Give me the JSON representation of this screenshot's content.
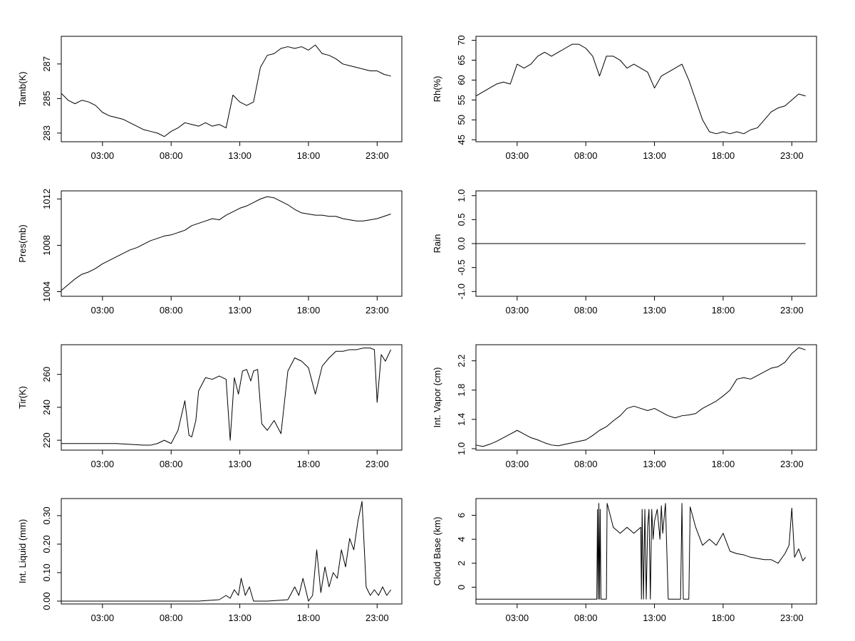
{
  "chart_data": [
    {
      "type": "line",
      "ylabel": "Tamb(K)",
      "x_ticks": [
        "03:00",
        "08:00",
        "13:00",
        "18:00",
        "23:00"
      ],
      "xlim": [
        0,
        24.8
      ],
      "ylim": [
        282.5,
        288.6
      ],
      "y_ticks": [
        "283",
        "285",
        "287"
      ],
      "line_color": "#000000",
      "x": [
        0,
        0.5,
        1,
        1.5,
        2,
        2.5,
        3,
        3.5,
        4,
        4.5,
        5,
        5.5,
        6,
        6.5,
        7,
        7.5,
        8,
        8.5,
        9,
        9.5,
        10,
        10.5,
        11,
        11.5,
        12,
        12.5,
        13,
        13.5,
        14,
        14.5,
        15,
        15.5,
        16,
        16.5,
        17,
        17.5,
        18,
        18.5,
        19,
        19.5,
        20,
        20.5,
        21,
        21.5,
        22,
        22.5,
        23,
        23.5,
        24
      ],
      "values": [
        285.3,
        284.9,
        284.7,
        284.9,
        284.8,
        284.6,
        284.2,
        284.0,
        283.9,
        283.8,
        283.6,
        283.4,
        283.2,
        283.1,
        283.0,
        282.8,
        283.1,
        283.3,
        283.6,
        283.5,
        283.4,
        283.6,
        283.4,
        283.5,
        283.3,
        285.2,
        284.8,
        284.6,
        284.8,
        286.8,
        287.5,
        287.6,
        287.9,
        288.0,
        287.9,
        288.0,
        287.8,
        288.1,
        287.6,
        287.5,
        287.3,
        287.0,
        286.9,
        286.8,
        286.7,
        286.6,
        286.6,
        286.4,
        286.3
      ]
    },
    {
      "type": "line",
      "ylabel": "Rh(%)",
      "x_ticks": [
        "03:00",
        "08:00",
        "13:00",
        "18:00",
        "23:00"
      ],
      "xlim": [
        0,
        24.8
      ],
      "ylim": [
        44.5,
        71
      ],
      "y_ticks": [
        "45",
        "50",
        "55",
        "60",
        "65",
        "70"
      ],
      "line_color": "#000000",
      "x": [
        0,
        0.5,
        1,
        1.5,
        2,
        2.5,
        3,
        3.5,
        4,
        4.5,
        5,
        5.5,
        6,
        6.5,
        7,
        7.5,
        8,
        8.5,
        9,
        9.5,
        10,
        10.5,
        11,
        11.5,
        12,
        12.5,
        13,
        13.5,
        14,
        14.5,
        15,
        15.5,
        16,
        16.5,
        17,
        17.5,
        18,
        18.5,
        19,
        19.5,
        20,
        20.5,
        21,
        21.5,
        22,
        22.5,
        23,
        23.5,
        24
      ],
      "values": [
        56,
        57,
        58,
        59,
        59.5,
        59,
        64,
        63,
        64,
        66,
        67,
        66,
        67,
        68,
        69,
        69,
        68,
        66,
        61,
        66,
        66,
        65,
        63,
        64,
        63,
        62,
        58,
        61,
        62,
        63,
        64,
        60,
        55,
        50,
        47,
        46.5,
        47,
        46.5,
        47,
        46.5,
        47.5,
        48,
        50,
        52,
        53,
        53.5,
        55,
        56.5,
        56
      ]
    },
    {
      "type": "line",
      "ylabel": "Pres(mb)",
      "x_ticks": [
        "03:00",
        "08:00",
        "13:00",
        "18:00",
        "23:00"
      ],
      "xlim": [
        0,
        24.8
      ],
      "ylim": [
        1003.6,
        1012.7
      ],
      "y_ticks": [
        "1004",
        "1008",
        "1012"
      ],
      "line_color": "#000000",
      "x": [
        0,
        0.5,
        1,
        1.5,
        2,
        2.5,
        3,
        3.5,
        4,
        4.5,
        5,
        5.5,
        6,
        6.5,
        7,
        7.5,
        8,
        8.5,
        9,
        9.5,
        10,
        10.5,
        11,
        11.5,
        12,
        12.5,
        13,
        13.5,
        14,
        14.5,
        15,
        15.5,
        16,
        16.5,
        17,
        17.5,
        18,
        18.5,
        19,
        19.5,
        20,
        20.5,
        21,
        21.5,
        22,
        22.5,
        23,
        23.5,
        24
      ],
      "values": [
        1004.1,
        1004.6,
        1005.1,
        1005.5,
        1005.7,
        1006.0,
        1006.4,
        1006.7,
        1007.0,
        1007.3,
        1007.6,
        1007.8,
        1008.1,
        1008.4,
        1008.6,
        1008.8,
        1008.9,
        1009.1,
        1009.3,
        1009.7,
        1009.9,
        1010.1,
        1010.3,
        1010.2,
        1010.6,
        1010.9,
        1011.2,
        1011.4,
        1011.7,
        1012.0,
        1012.2,
        1012.1,
        1011.8,
        1011.5,
        1011.1,
        1010.8,
        1010.7,
        1010.6,
        1010.6,
        1010.5,
        1010.5,
        1010.3,
        1010.2,
        1010.1,
        1010.1,
        1010.2,
        1010.3,
        1010.5,
        1010.7
      ]
    },
    {
      "type": "line",
      "ylabel": "Rain",
      "x_ticks": [
        "03:00",
        "08:00",
        "13:00",
        "18:00",
        "23:00"
      ],
      "xlim": [
        0,
        24.8
      ],
      "ylim": [
        -1.1,
        1.1
      ],
      "y_ticks": [
        "-1.0",
        "-0.5",
        "0.0",
        "0.5",
        "1.0"
      ],
      "line_color": "#000000",
      "x": [
        0,
        24
      ],
      "values": [
        0,
        0
      ]
    },
    {
      "type": "line",
      "ylabel": "Tir(K)",
      "x_ticks": [
        "03:00",
        "08:00",
        "13:00",
        "18:00",
        "23:00"
      ],
      "xlim": [
        0,
        24.8
      ],
      "ylim": [
        214,
        278
      ],
      "y_ticks": [
        "220",
        "240",
        "260"
      ],
      "line_color": "#000000",
      "x": [
        0,
        1,
        2,
        3,
        4,
        5,
        6,
        6.5,
        7,
        7.5,
        8,
        8.5,
        9,
        9.3,
        9.5,
        9.8,
        10,
        10.5,
        11,
        11.5,
        12,
        12.3,
        12.6,
        12.9,
        13.2,
        13.5,
        13.8,
        14,
        14.3,
        14.6,
        15,
        15.5,
        16,
        16.5,
        17,
        17.5,
        18,
        18.5,
        19,
        19.5,
        20,
        20.5,
        21,
        21.5,
        22,
        22.5,
        22.8,
        23,
        23.3,
        23.6,
        24
      ],
      "values": [
        218,
        218,
        218,
        218,
        218,
        217.5,
        217,
        217,
        218,
        220,
        218,
        226,
        244,
        223,
        222,
        232,
        250,
        258,
        257,
        259,
        257,
        220,
        258,
        248,
        262,
        263,
        256,
        262,
        263,
        230,
        226,
        232,
        224,
        262,
        270,
        268,
        264,
        248,
        265,
        270,
        274,
        274,
        275,
        275,
        276,
        276,
        275,
        243,
        272,
        268,
        275
      ]
    },
    {
      "type": "line",
      "ylabel": "Int. Vapor (cm)",
      "x_ticks": [
        "03:00",
        "08:00",
        "13:00",
        "18:00",
        "23:00"
      ],
      "xlim": [
        0,
        24.8
      ],
      "ylim": [
        0.98,
        2.42
      ],
      "y_ticks": [
        "1.0",
        "1.4",
        "1.8",
        "2.2"
      ],
      "line_color": "#000000",
      "x": [
        0,
        0.5,
        1,
        1.5,
        2,
        2.5,
        3,
        3.5,
        4,
        4.5,
        5,
        5.5,
        6,
        6.5,
        7,
        7.5,
        8,
        8.5,
        9,
        9.5,
        10,
        10.5,
        11,
        11.5,
        12,
        12.5,
        13,
        13.5,
        14,
        14.5,
        15,
        15.5,
        16,
        16.5,
        17,
        17.5,
        18,
        18.5,
        19,
        19.5,
        20,
        20.5,
        21,
        21.5,
        22,
        22.5,
        23,
        23.5,
        24
      ],
      "values": [
        1.05,
        1.03,
        1.06,
        1.1,
        1.15,
        1.2,
        1.25,
        1.2,
        1.15,
        1.12,
        1.08,
        1.05,
        1.04,
        1.06,
        1.08,
        1.1,
        1.12,
        1.18,
        1.25,
        1.3,
        1.38,
        1.45,
        1.55,
        1.58,
        1.55,
        1.52,
        1.55,
        1.5,
        1.45,
        1.42,
        1.45,
        1.46,
        1.48,
        1.55,
        1.6,
        1.65,
        1.72,
        1.8,
        1.95,
        1.97,
        1.95,
        2.0,
        2.05,
        2.1,
        2.12,
        2.18,
        2.3,
        2.38,
        2.35
      ]
    },
    {
      "type": "line",
      "ylabel": "Int. Liquid (mm)",
      "x_ticks": [
        "03:00",
        "08:00",
        "13:00",
        "18:00",
        "23:00"
      ],
      "xlim": [
        0,
        24.8
      ],
      "ylim": [
        -0.01,
        0.36
      ],
      "y_ticks": [
        "0.00",
        "0.10",
        "0.20",
        "0.30"
      ],
      "line_color": "#000000",
      "x": [
        0,
        5,
        10,
        11.5,
        12,
        12.3,
        12.6,
        12.9,
        13.1,
        13.4,
        13.7,
        14,
        15,
        16.5,
        17,
        17.3,
        17.6,
        18,
        18.3,
        18.6,
        18.9,
        19.2,
        19.5,
        19.8,
        20.1,
        20.4,
        20.7,
        21,
        21.3,
        21.6,
        21.9,
        22.2,
        22.5,
        22.8,
        23.1,
        23.4,
        23.7,
        24
      ],
      "values": [
        0,
        0,
        0,
        0.005,
        0.02,
        0.01,
        0.04,
        0.02,
        0.08,
        0.02,
        0.05,
        0,
        0,
        0.005,
        0.05,
        0.02,
        0.08,
        0,
        0.02,
        0.18,
        0.03,
        0.12,
        0.05,
        0.1,
        0.08,
        0.18,
        0.12,
        0.22,
        0.18,
        0.28,
        0.35,
        0.05,
        0.02,
        0.04,
        0.02,
        0.05,
        0.02,
        0.04
      ]
    },
    {
      "type": "line",
      "ylabel": "Cloud Base (km)",
      "x_ticks": [
        "03:00",
        "08:00",
        "13:00",
        "18:00",
        "23:00"
      ],
      "xlim": [
        0,
        24.8
      ],
      "ylim": [
        -1.4,
        7.4
      ],
      "y_ticks": [
        "0",
        "2",
        "4",
        "6"
      ],
      "line_color": "#000000",
      "x": [
        0,
        8.8,
        8.85,
        8.9,
        8.95,
        9,
        9.05,
        9.1,
        9.5,
        9.55,
        9.6,
        10,
        10.5,
        11,
        11.5,
        12,
        12.05,
        12.1,
        12.2,
        12.3,
        12.4,
        12.5,
        12.6,
        12.7,
        12.8,
        12.9,
        13,
        13.2,
        13.4,
        13.5,
        13.6,
        13.8,
        14,
        14.1,
        14.5,
        14.9,
        15,
        15.1,
        15.5,
        15.6,
        16,
        16.5,
        17,
        17.5,
        18,
        18.5,
        19,
        19.5,
        20,
        20.5,
        21,
        21.5,
        22,
        22.5,
        22.8,
        23,
        23.2,
        23.5,
        23.8,
        24
      ],
      "values": [
        -1,
        -1,
        6.5,
        -1,
        7,
        -1,
        6.5,
        -1,
        -1,
        7,
        6.8,
        5,
        4.5,
        5,
        4.5,
        5,
        -1,
        6.5,
        -1,
        6.5,
        -1,
        5,
        6.5,
        -1,
        6.5,
        4,
        5.5,
        6.5,
        4,
        6.8,
        4.5,
        7,
        -1,
        -1,
        -1,
        -1,
        7,
        -1,
        -1,
        6.7,
        5,
        3.5,
        4,
        3.5,
        4.5,
        3,
        2.8,
        2.7,
        2.5,
        2.4,
        2.3,
        2.3,
        2.0,
        2.8,
        3.5,
        6.6,
        2.5,
        3.2,
        2.2,
        2.5
      ]
    }
  ]
}
